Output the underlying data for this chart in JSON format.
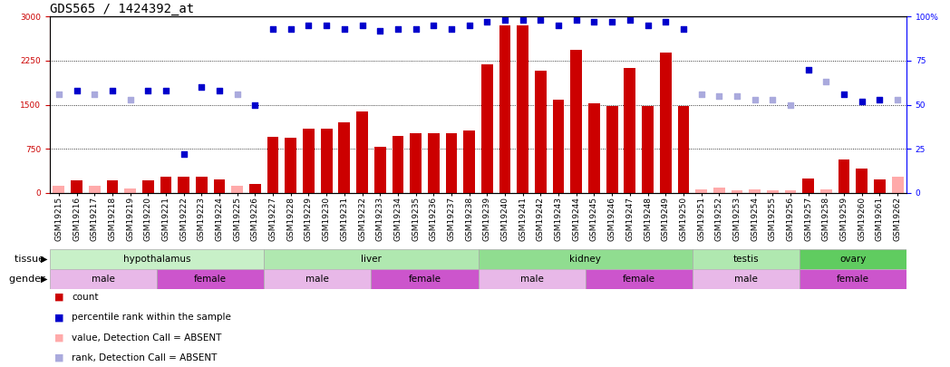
{
  "title": "GDS565 / 1424392_at",
  "samples": [
    "GSM19215",
    "GSM19216",
    "GSM19217",
    "GSM19218",
    "GSM19219",
    "GSM19220",
    "GSM19221",
    "GSM19222",
    "GSM19223",
    "GSM19224",
    "GSM19225",
    "GSM19226",
    "GSM19227",
    "GSM19228",
    "GSM19229",
    "GSM19230",
    "GSM19231",
    "GSM19232",
    "GSM19233",
    "GSM19234",
    "GSM19235",
    "GSM19236",
    "GSM19237",
    "GSM19238",
    "GSM19239",
    "GSM19240",
    "GSM19241",
    "GSM19242",
    "GSM19243",
    "GSM19244",
    "GSM19245",
    "GSM19246",
    "GSM19247",
    "GSM19248",
    "GSM19249",
    "GSM19250",
    "GSM19251",
    "GSM19252",
    "GSM19253",
    "GSM19254",
    "GSM19255",
    "GSM19256",
    "GSM19257",
    "GSM19258",
    "GSM19259",
    "GSM19260",
    "GSM19261",
    "GSM19262"
  ],
  "bar_values": [
    120,
    220,
    120,
    220,
    70,
    220,
    270,
    280,
    270,
    230,
    130,
    160,
    950,
    940,
    1100,
    1100,
    1200,
    1380,
    780,
    970,
    1020,
    1020,
    1020,
    1060,
    2180,
    2850,
    2850,
    2080,
    1580,
    2430,
    1530,
    1480,
    2130,
    1470,
    2380,
    1480,
    55,
    90,
    50,
    60,
    50,
    40,
    250,
    65,
    570,
    420,
    230,
    270
  ],
  "bar_absent": [
    true,
    false,
    true,
    false,
    true,
    false,
    false,
    false,
    false,
    false,
    true,
    false,
    false,
    false,
    false,
    false,
    false,
    false,
    false,
    false,
    false,
    false,
    false,
    false,
    false,
    false,
    false,
    false,
    false,
    false,
    false,
    false,
    false,
    false,
    false,
    false,
    true,
    true,
    true,
    true,
    true,
    true,
    false,
    true,
    false,
    false,
    false,
    true
  ],
  "percentile_values": [
    56,
    58,
    56,
    58,
    53,
    58,
    58,
    22,
    60,
    58,
    56,
    50,
    93,
    93,
    95,
    95,
    93,
    95,
    92,
    93,
    93,
    95,
    93,
    95,
    97,
    98,
    98,
    98,
    95,
    98,
    97,
    97,
    98,
    95,
    97,
    93,
    56,
    55,
    55,
    53,
    53,
    50,
    70,
    63,
    56,
    52,
    53,
    53
  ],
  "percentile_absent": [
    true,
    false,
    true,
    false,
    true,
    false,
    false,
    false,
    false,
    false,
    true,
    false,
    false,
    false,
    false,
    false,
    false,
    false,
    false,
    false,
    false,
    false,
    false,
    false,
    false,
    false,
    false,
    false,
    false,
    false,
    false,
    false,
    false,
    false,
    false,
    false,
    true,
    true,
    true,
    true,
    true,
    true,
    false,
    true,
    false,
    false,
    false,
    true
  ],
  "tissues": [
    {
      "label": "hypothalamus",
      "start": 0,
      "end": 12,
      "color": "#c8f0c8"
    },
    {
      "label": "liver",
      "start": 12,
      "end": 24,
      "color": "#b0e8b0"
    },
    {
      "label": "kidney",
      "start": 24,
      "end": 36,
      "color": "#90dd90"
    },
    {
      "label": "testis",
      "start": 36,
      "end": 42,
      "color": "#b0e8b0"
    },
    {
      "label": "ovary",
      "start": 42,
      "end": 48,
      "color": "#60cc60"
    }
  ],
  "genders": [
    {
      "label": "male",
      "start": 0,
      "end": 6,
      "color": "#e8b8e8"
    },
    {
      "label": "female",
      "start": 6,
      "end": 12,
      "color": "#cc55cc"
    },
    {
      "label": "male",
      "start": 12,
      "end": 18,
      "color": "#e8b8e8"
    },
    {
      "label": "female",
      "start": 18,
      "end": 24,
      "color": "#cc55cc"
    },
    {
      "label": "male",
      "start": 24,
      "end": 30,
      "color": "#e8b8e8"
    },
    {
      "label": "female",
      "start": 30,
      "end": 36,
      "color": "#cc55cc"
    },
    {
      "label": "male",
      "start": 36,
      "end": 42,
      "color": "#e8b8e8"
    },
    {
      "label": "female",
      "start": 42,
      "end": 48,
      "color": "#cc55cc"
    }
  ],
  "ylim_left": [
    0,
    3000
  ],
  "ylim_right": [
    0,
    100
  ],
  "yticks_left": [
    0,
    750,
    1500,
    2250,
    3000
  ],
  "yticks_right": [
    0,
    25,
    50,
    75,
    100
  ],
  "bar_color_present": "#cc0000",
  "bar_color_absent": "#ffaaaa",
  "dot_color_present": "#0000cc",
  "dot_color_absent": "#aaaadd",
  "title_fontsize": 10,
  "tick_fontsize": 6.5,
  "label_fontsize": 8,
  "background_color": "#ffffff",
  "plot_bg": "#ffffff"
}
